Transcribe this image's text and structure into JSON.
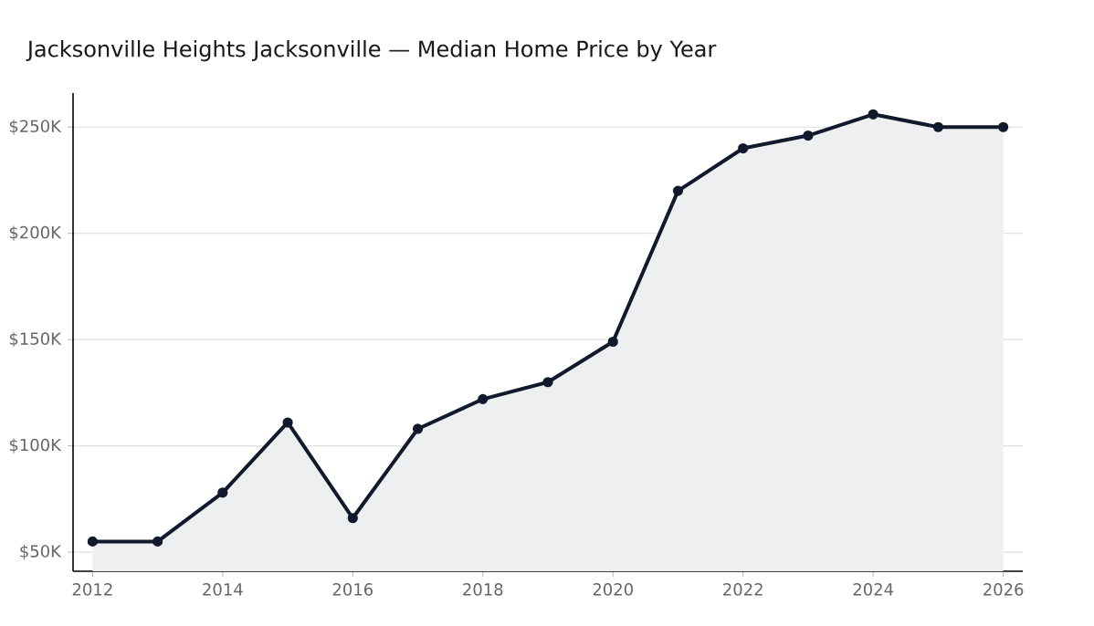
{
  "chart_data": {
    "type": "area",
    "title": "Jacksonville Heights Jacksonville — Median Home Price by Year",
    "x": [
      2012,
      2013,
      2014,
      2015,
      2016,
      2017,
      2018,
      2019,
      2020,
      2021,
      2022,
      2023,
      2024,
      2025,
      2026
    ],
    "series": [
      {
        "color": "#111a2c",
        "values": [
          55,
          55,
          78,
          111,
          66,
          108,
          122,
          130,
          149,
          220,
          240,
          246,
          256,
          250,
          250
        ]
      }
    ],
    "xlim": [
      2011.7,
      2026.3
    ],
    "xticks": [
      2012,
      2014,
      2016,
      2018,
      2020,
      2022,
      2024,
      2026
    ],
    "ylim": [
      41,
      266
    ],
    "yticks": [
      {
        "value": 50,
        "label": "$50K"
      },
      {
        "value": 100,
        "label": "$100K"
      },
      {
        "value": 150,
        "label": "$150K"
      },
      {
        "value": 200,
        "label": "$200K"
      },
      {
        "value": 250,
        "label": "$250K"
      }
    ],
    "grid": "y",
    "marker": "circle"
  }
}
